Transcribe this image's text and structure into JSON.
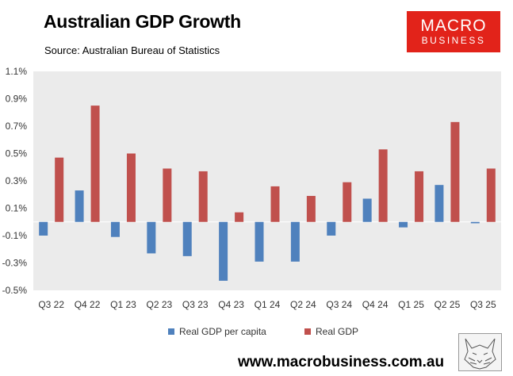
{
  "header": {
    "title": "Australian GDP Growth",
    "source": "Source: Australian Bureau of Statistics"
  },
  "logo": {
    "line1": "MACRO",
    "line2": "BUSINESS",
    "background": "#e2231a"
  },
  "footer": {
    "url": "www.macrobusiness.com.au",
    "fox_image": "fox-sketch-icon"
  },
  "colors": {
    "series1": "#4f81bd",
    "series2": "#c0504d",
    "plot_background": "#ebebeb"
  },
  "chart_data": {
    "type": "bar",
    "title": "Australian GDP Growth",
    "xlabel": "",
    "ylabel": "",
    "categories": [
      "Q3 22",
      "Q4 22",
      "Q1 23",
      "Q2 23",
      "Q3 23",
      "Q4 23",
      "Q1 24",
      "Q2 24",
      "Q3 24",
      "Q4 24",
      "Q1 25",
      "Q2 25",
      "Q3 25"
    ],
    "series": [
      {
        "name": "Real GDP per capita",
        "color": "#4f81bd",
        "values": [
          -0.1,
          0.23,
          -0.11,
          -0.23,
          -0.25,
          -0.43,
          -0.29,
          -0.29,
          -0.1,
          0.17,
          -0.04,
          0.27,
          -0.01
        ]
      },
      {
        "name": "Real GDP",
        "color": "#c0504d",
        "values": [
          0.47,
          0.85,
          0.5,
          0.39,
          0.37,
          0.07,
          0.26,
          0.19,
          0.29,
          0.53,
          0.37,
          0.73,
          0.39
        ]
      }
    ],
    "ylim": [
      -0.5,
      1.1
    ],
    "yticks": [
      -0.5,
      -0.3,
      -0.1,
      0.1,
      0.3,
      0.5,
      0.7,
      0.9,
      1.1
    ],
    "ytick_labels": [
      "-0.5%",
      "-0.3%",
      "-0.1%",
      "0.1%",
      "0.3%",
      "0.5%",
      "0.7%",
      "0.9%",
      "1.1%"
    ],
    "grid": false,
    "legend_position": "bottom"
  }
}
